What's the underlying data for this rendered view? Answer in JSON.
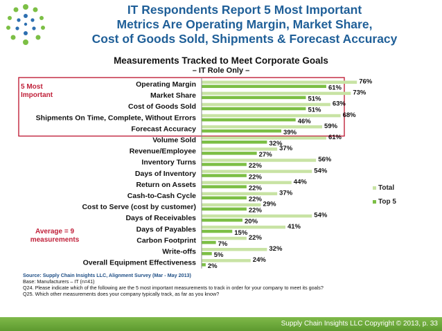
{
  "slide": {
    "title_lines": [
      "IT Respondents Report 5 Most Important",
      "Metrics Are Operating Margin, Market Share,",
      "Cost of Goods Sold, Shipments & Forecast Accuracy"
    ],
    "footer": "Supply Chain Insights LLC Copyright © 2013, p. 33",
    "source_lines": [
      "Source: Supply Chain Insights LLC, Alignment Survey (Mar - May 2013)",
      "Base: Manufacturers – IT (n=41)",
      "Q24. Please indicate which of the following are the 5 most important measurements to track in order for your company to meet its goals?",
      "Q25. Which other measurements does your company typically track, as far as you know?"
    ],
    "callouts": {
      "top5": "5 Most\nImportant",
      "average": "Average = 9\nmeasurements"
    },
    "colors": {
      "title": "#1f5f98",
      "total": "#c8e3a4",
      "top5": "#7cbf45",
      "callout": "#c0213a",
      "footer": "#6aa63a"
    }
  },
  "chart_data": {
    "type": "bar",
    "orientation": "horizontal",
    "title": "Measurements Tracked to Meet Corporate Goals",
    "subtitle": "– IT Role Only –",
    "categories": [
      "Operating Margin",
      "Market Share",
      "Cost of Goods Sold",
      "Shipments On Time, Complete, Without Errors",
      "Forecast Accuracy",
      "Volume Sold",
      "Revenue/Employee",
      "Inventory Turns",
      "Days of Inventory",
      "Return on Assets",
      "Cash-to-Cash Cycle",
      "Cost to Serve (cost by customer)",
      "Days of Receivables",
      "Days of Payables",
      "Carbon Footprint",
      "Write-offs",
      "Overall Equipment Effectiveness"
    ],
    "series": [
      {
        "name": "Total",
        "values": [
          76,
          73,
          63,
          68,
          59,
          61,
          37,
          56,
          54,
          44,
          37,
          29,
          54,
          41,
          22,
          32,
          24
        ]
      },
      {
        "name": "Top 5",
        "values": [
          61,
          51,
          51,
          46,
          39,
          32,
          27,
          22,
          22,
          22,
          22,
          22,
          20,
          15,
          7,
          5,
          2
        ]
      }
    ],
    "value_suffix": "%",
    "xlim": [
      0,
      100
    ],
    "legend_position": "right",
    "grid": false
  }
}
